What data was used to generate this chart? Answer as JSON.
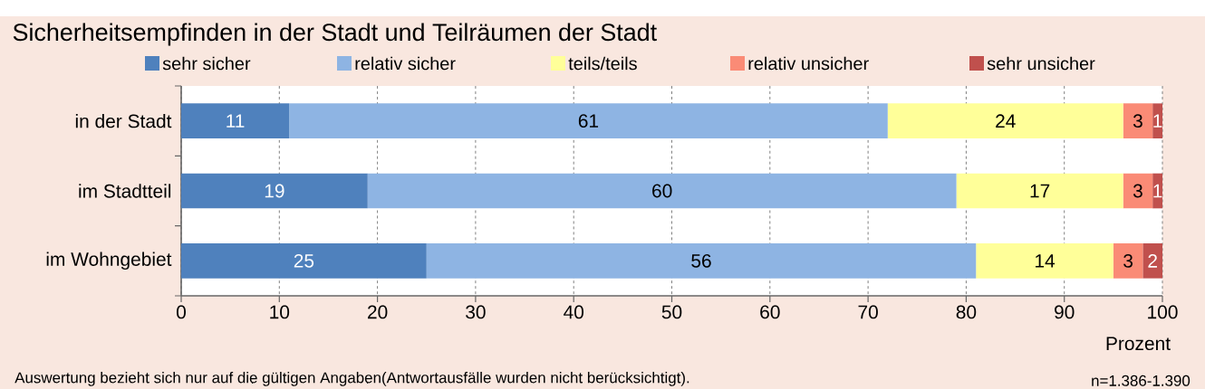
{
  "chart_data": {
    "type": "bar",
    "orientation": "horizontal",
    "stacked": true,
    "title": "Sicherheitsempfinden in der Stadt und Teilräumen der Stadt",
    "xlabel": "Prozent",
    "categories": [
      "in der Stadt",
      "im Stadtteil",
      "im Wohngebiet"
    ],
    "series": [
      {
        "name": "sehr sicher",
        "color": "#4f81bd",
        "values": [
          11,
          19,
          25
        ]
      },
      {
        "name": "relativ sicher",
        "color": "#8eb4e3",
        "values": [
          61,
          60,
          56
        ]
      },
      {
        "name": "teils/teils",
        "color": "#ffff99",
        "values": [
          24,
          17,
          14
        ]
      },
      {
        "name": "relativ unsicher",
        "color": "#fa8b76",
        "values": [
          3,
          3,
          3
        ]
      },
      {
        "name": "sehr unsicher",
        "color": "#c0504d",
        "values": [
          1,
          1,
          2
        ]
      }
    ],
    "xlim": [
      0,
      100
    ],
    "xticks": [
      0,
      10,
      20,
      30,
      40,
      50,
      60,
      70,
      80,
      90,
      100
    ],
    "grid": "x",
    "legend": "top",
    "data_labels": true,
    "annotations": [
      "Auswertung bezieht sich nur auf die gültigen Angaben(Antwortausfälle wurden nicht berücksichtigt).",
      "n=1.386-1.390"
    ]
  }
}
